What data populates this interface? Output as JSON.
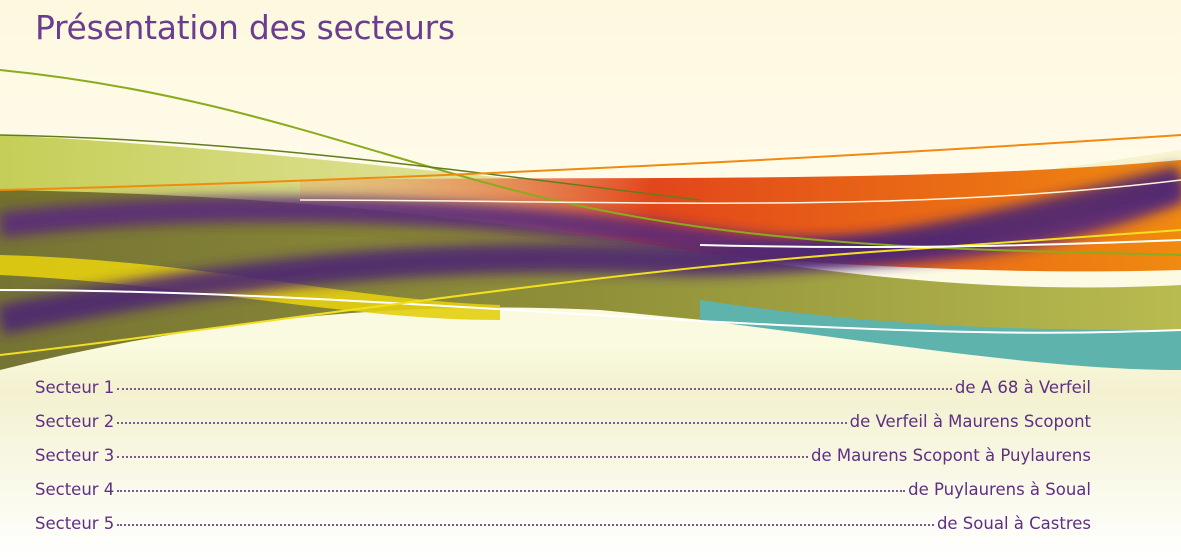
{
  "title": "Présentation des secteurs",
  "sectors": [
    {
      "label": "Secteur 1",
      "route": "de A 68 à Verfeil"
    },
    {
      "label": "Secteur 2",
      "route": "de Verfeil à Maurens Scopont"
    },
    {
      "label": "Secteur 3",
      "route": "de Maurens Scopont à Puylaurens"
    },
    {
      "label": "Secteur 4",
      "route": "de Puylaurens à Soual"
    },
    {
      "label": "Secteur 5",
      "route": "de Soual à Castres"
    }
  ]
}
